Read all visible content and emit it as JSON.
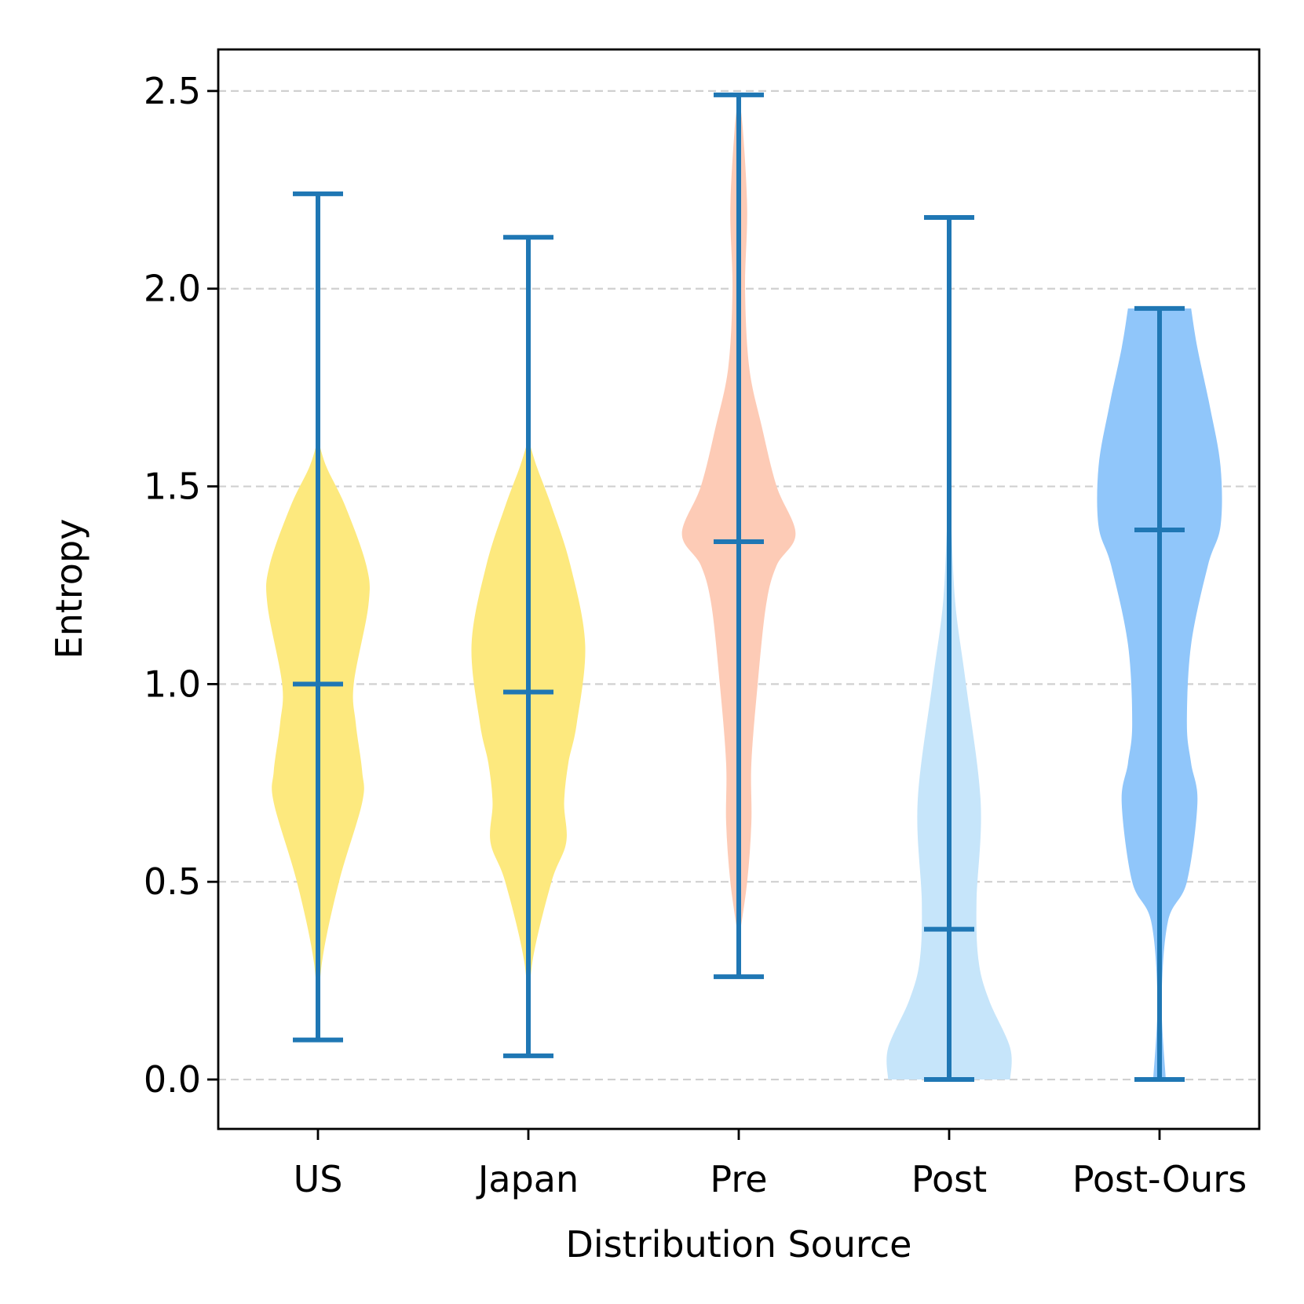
{
  "chart_data": {
    "type": "violin",
    "xlabel": "Distribution Source",
    "ylabel": "Entropy",
    "ylim": [
      -0.125,
      2.605
    ],
    "y_ticks": [
      0.0,
      0.5,
      1.0,
      1.5,
      2.0,
      2.5
    ],
    "y_tick_labels": [
      "0.0",
      "0.5",
      "1.0",
      "1.5",
      "2.0",
      "2.5"
    ],
    "grid": "horizontal dashed",
    "categories": [
      "US",
      "Japan",
      "Pre",
      "Post",
      "Post-Ours"
    ],
    "stat_color": "#1f77b4",
    "series": [
      {
        "category": "US",
        "color": "#fde97e",
        "min": 0.1,
        "median": 1.0,
        "max": 2.24,
        "density": [
          [
            0.14,
            0.0
          ],
          [
            0.3,
            0.02
          ],
          [
            0.5,
            0.1
          ],
          [
            0.7,
            0.21
          ],
          [
            0.78,
            0.21
          ],
          [
            0.9,
            0.18
          ],
          [
            1.0,
            0.17
          ],
          [
            1.2,
            0.24
          ],
          [
            1.3,
            0.23
          ],
          [
            1.45,
            0.13
          ],
          [
            1.55,
            0.04
          ],
          [
            1.62,
            0.0
          ]
        ]
      },
      {
        "category": "Japan",
        "color": "#fde97e",
        "min": 0.06,
        "median": 0.98,
        "max": 2.13,
        "density": [
          [
            0.14,
            0.0
          ],
          [
            0.3,
            0.02
          ],
          [
            0.5,
            0.11
          ],
          [
            0.6,
            0.18
          ],
          [
            0.7,
            0.17
          ],
          [
            0.8,
            0.19
          ],
          [
            0.9,
            0.23
          ],
          [
            1.1,
            0.27
          ],
          [
            1.3,
            0.2
          ],
          [
            1.45,
            0.11
          ],
          [
            1.55,
            0.04
          ],
          [
            1.62,
            0.0
          ]
        ]
      },
      {
        "category": "Pre",
        "color": "#fdcbb6",
        "min": 0.26,
        "median": 1.36,
        "max": 2.49,
        "density": [
          [
            0.35,
            0.0
          ],
          [
            0.5,
            0.04
          ],
          [
            0.65,
            0.06
          ],
          [
            0.8,
            0.06
          ],
          [
            1.0,
            0.09
          ],
          [
            1.2,
            0.13
          ],
          [
            1.3,
            0.18
          ],
          [
            1.38,
            0.27
          ],
          [
            1.5,
            0.18
          ],
          [
            1.65,
            0.11
          ],
          [
            1.8,
            0.05
          ],
          [
            2.0,
            0.03
          ],
          [
            2.2,
            0.04
          ],
          [
            2.4,
            0.02
          ],
          [
            2.49,
            0.0
          ]
        ]
      },
      {
        "category": "Post",
        "color": "#c6e5fa",
        "min": 0.0,
        "median": 0.38,
        "max": 2.18,
        "density": [
          [
            0.0,
            0.29
          ],
          [
            0.08,
            0.29
          ],
          [
            0.2,
            0.19
          ],
          [
            0.3,
            0.14
          ],
          [
            0.45,
            0.13
          ],
          [
            0.7,
            0.15
          ],
          [
            1.0,
            0.08
          ],
          [
            1.2,
            0.03
          ],
          [
            1.4,
            0.01
          ],
          [
            1.5,
            0.0
          ]
        ]
      },
      {
        "category": "Post-Ours",
        "color": "#90c6fa",
        "min": 0.0,
        "median": 1.39,
        "max": 1.95,
        "density": [
          [
            0.0,
            0.03
          ],
          [
            0.2,
            0.01
          ],
          [
            0.4,
            0.04
          ],
          [
            0.5,
            0.13
          ],
          [
            0.7,
            0.18
          ],
          [
            0.8,
            0.15
          ],
          [
            0.9,
            0.13
          ],
          [
            1.1,
            0.15
          ],
          [
            1.3,
            0.23
          ],
          [
            1.4,
            0.29
          ],
          [
            1.55,
            0.29
          ],
          [
            1.7,
            0.24
          ],
          [
            1.85,
            0.18
          ],
          [
            1.95,
            0.15
          ]
        ]
      }
    ]
  }
}
